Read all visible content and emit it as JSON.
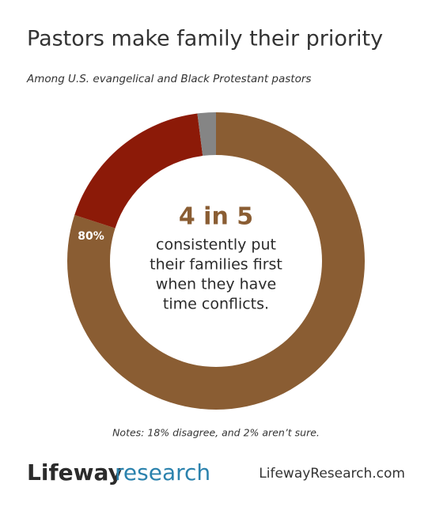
{
  "chart_data": {
    "type": "donut",
    "title": "Pastors make family their priority",
    "subtitle": "Among U.S. evangelical and Black Protestant pastors",
    "categories": [
      null,
      null,
      null
    ],
    "values": [
      80,
      18,
      2
    ],
    "value_labels": [
      "80%",
      null,
      null
    ],
    "colors": [
      "#8a5d33",
      "#8c1a08",
      "#858585"
    ],
    "center_text": {
      "headline": "4 in 5",
      "lines": [
        "consistently put",
        "their families first",
        "when they have",
        "time conflicts."
      ]
    },
    "notes": "Notes: 18% disagree, and 2% aren’t sure."
  },
  "footer": {
    "logo_primary": "Lifeway",
    "logo_secondary": "research",
    "url": "LifewayResearch.com"
  }
}
